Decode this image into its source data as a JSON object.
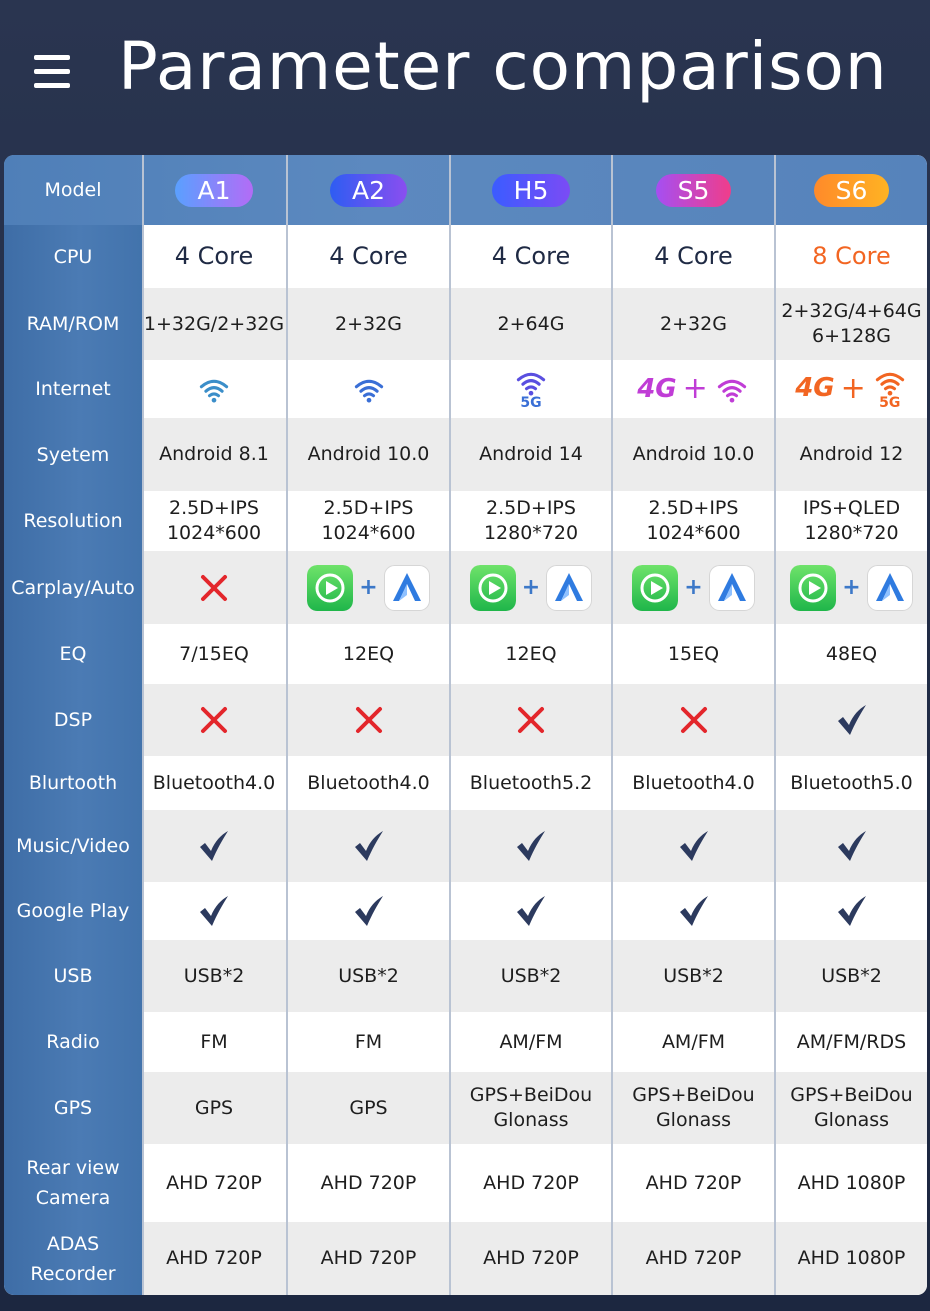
{
  "title": "Parameter comparison",
  "icons": {
    "menu": "hamburger-menu-icon",
    "check": "check-icon",
    "cross": "cross-icon",
    "wifi": "wifi-icon",
    "carplay": "carplay-icon",
    "android_auto": "android-auto-icon"
  },
  "colors": {
    "cross": "#e3262b",
    "check": "#2c3a5e",
    "orange": "#f26522",
    "purple": "#c03dd6",
    "wifi_blue": "#3a6fd6"
  },
  "table": {
    "header_label": "Model",
    "models": [
      {
        "name": "A1",
        "gradient": [
          "#5aa0ff",
          "#b36cf6"
        ]
      },
      {
        "name": "A2",
        "gradient": [
          "#2e5df2",
          "#8a4ef0"
        ]
      },
      {
        "name": "H5",
        "gradient": [
          "#3b5cff",
          "#7b4bf5"
        ]
      },
      {
        "name": "S5",
        "gradient": [
          "#a54ff2",
          "#f03d8a"
        ]
      },
      {
        "name": "S6",
        "gradient": [
          "#ff8a2a",
          "#ffb323"
        ]
      }
    ],
    "cpu": {
      "label": "CPU",
      "values": [
        "4 Core",
        "4 Core",
        "4 Core",
        "4 Core",
        "8 Core"
      ]
    },
    "ram": {
      "label": "RAM/ROM",
      "values": [
        "1+32G/2+32G",
        "2+32G",
        "2+64G",
        "2+32G",
        "2+32G/4+64G\n6+128G"
      ]
    },
    "internet": {
      "label": "Internet",
      "values": [
        {
          "type": "wifi"
        },
        {
          "type": "wifi"
        },
        {
          "type": "wifi",
          "tag": "5G"
        },
        {
          "type": "4g",
          "tag4g": "4G",
          "plus": "+"
        },
        {
          "type": "4g-5g",
          "tag4g": "4G",
          "plus": "+",
          "tag": "5G"
        }
      ]
    },
    "system": {
      "label": "Syetem",
      "values": [
        "Android 8.1",
        "Android 10.0",
        "Android 14",
        "Android 10.0",
        "Android 12"
      ]
    },
    "resolution": {
      "label": "Resolution",
      "values": [
        "2.5D+IPS\n1024*600",
        "2.5D+IPS\n1024*600",
        "2.5D+IPS\n1280*720",
        "2.5D+IPS\n1024*600",
        "IPS+QLED\n1280*720"
      ]
    },
    "carplay": {
      "label": "Carplay/Auto",
      "values": [
        false,
        true,
        true,
        true,
        true
      ],
      "plus": "+"
    },
    "eq": {
      "label": "EQ",
      "values": [
        "7/15EQ",
        "12EQ",
        "12EQ",
        "15EQ",
        "48EQ"
      ]
    },
    "dsp": {
      "label": "DSP",
      "values": [
        false,
        false,
        false,
        false,
        true
      ]
    },
    "bluetooth": {
      "label": "Blurtooth",
      "values": [
        "Bluetooth4.0",
        "Bluetooth4.0",
        "Bluetooth5.2",
        "Bluetooth4.0",
        "Bluetooth5.0"
      ]
    },
    "music": {
      "label": "Music/Video",
      "values": [
        true,
        true,
        true,
        true,
        true
      ]
    },
    "google": {
      "label": "Google Play",
      "values": [
        true,
        true,
        true,
        true,
        true
      ]
    },
    "usb": {
      "label": "USB",
      "values": [
        "USB*2",
        "USB*2",
        "USB*2",
        "USB*2",
        "USB*2"
      ]
    },
    "radio": {
      "label": "Radio",
      "values": [
        "FM",
        "FM",
        "AM/FM",
        "AM/FM",
        "AM/FM/RDS"
      ]
    },
    "gps": {
      "label": "GPS",
      "values": [
        "GPS",
        "GPS",
        "GPS+BeiDou\nGlonass",
        "GPS+BeiDou\nGlonass",
        "GPS+BeiDou\nGlonass"
      ]
    },
    "camera": {
      "label": "Rear view\nCamera",
      "values": [
        "AHD 720P",
        "AHD 720P",
        "AHD 720P",
        "AHD 720P",
        "AHD 1080P"
      ]
    },
    "adas": {
      "label": "ADAS\nRecorder",
      "values": [
        "AHD 720P",
        "AHD 720P",
        "AHD 720P",
        "AHD 720P",
        "AHD 1080P"
      ]
    }
  }
}
